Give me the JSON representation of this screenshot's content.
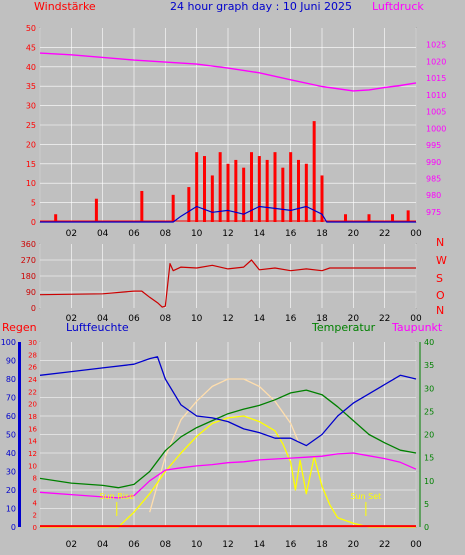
{
  "header": {
    "title": "24 hour graph day : 10 Juni 2025",
    "left_label": "Windstärke",
    "right_label": "Luftdruck"
  },
  "panel2": {
    "direction_labels": [
      "N",
      "W",
      "S",
      "O",
      "N"
    ]
  },
  "panel3": {
    "label_regen": "Regen",
    "label_luftfeuchte": "Luftfeuchte",
    "label_temperatur": "Temperatur",
    "label_taupunkt": "Taupunkt",
    "sunrise_label": "Sun Rise",
    "sunset_label": "Sun Set"
  },
  "colors": {
    "background": "#c0c0c0",
    "grid": "#ffffff",
    "wind": "#ff0000",
    "gust_blue": "#0000cc",
    "wind_green": "#008000",
    "pressure": "#ff00ff",
    "direction": "#cc0000",
    "humidity": "#0000cc",
    "temperature": "#008000",
    "dewpoint": "#ff00ff",
    "solar": "#ffff00",
    "uv": "#ffdead",
    "rain": "#ff0000"
  },
  "chart_data": [
    {
      "type": "line",
      "name": "wind-pressure",
      "x_range_hours": [
        0,
        24
      ],
      "x_ticks": [
        "02",
        "04",
        "06",
        "08",
        "10",
        "12",
        "14",
        "16",
        "18",
        "20",
        "22",
        "00"
      ],
      "y_left": {
        "label": "Windstärke",
        "range": [
          0,
          50
        ],
        "ticks": [
          "0",
          "5",
          "10",
          "15",
          "20",
          "25",
          "30",
          "35",
          "40",
          "45",
          "50"
        ]
      },
      "y_right": {
        "label": "Luftdruck",
        "range": [
          972,
          1030
        ],
        "ticks": [
          "975",
          "980",
          "985",
          "990",
          "995",
          "1000",
          "1005",
          "1010",
          "1015",
          "1020",
          "1025"
        ]
      },
      "series": [
        {
          "name": "Luftdruck",
          "axis": "right",
          "x": [
            0,
            2,
            4,
            6,
            8,
            10,
            12,
            14,
            16,
            18,
            20,
            21,
            22,
            23,
            24
          ],
          "y": [
            1022.5,
            1022.0,
            1021.2,
            1020.4,
            1019.8,
            1019.2,
            1018.0,
            1016.6,
            1014.5,
            1012.5,
            1011.2,
            1011.5,
            1012.2,
            1012.8,
            1013.6
          ]
        },
        {
          "name": "Windstärke",
          "axis": "left",
          "style": "bars",
          "x": [
            1.0,
            3.6,
            6.5,
            8.5,
            9.5,
            10.0,
            10.5,
            11.0,
            11.5,
            12.0,
            12.5,
            13.0,
            13.5,
            14.0,
            14.5,
            15.0,
            15.5,
            16.0,
            16.5,
            17.0,
            17.5,
            18.0,
            19.5,
            21.0,
            22.5,
            23.5
          ],
          "y": [
            2,
            6,
            8,
            7,
            9,
            18,
            17,
            12,
            18,
            15,
            16,
            14,
            18,
            17,
            16,
            18,
            14,
            18,
            16,
            15,
            26,
            12,
            2,
            2,
            2,
            3
          ]
        },
        {
          "name": "Böen",
          "axis": "left",
          "style": "line",
          "x": [
            0,
            8.5,
            9.0,
            10.0,
            11.0,
            12.0,
            13.0,
            14.0,
            15.0,
            16.0,
            17.0,
            18.0,
            18.3,
            24
          ],
          "y": [
            0,
            0,
            1.5,
            4,
            2.5,
            3,
            2,
            4,
            3.5,
            3,
            4,
            2,
            0,
            0
          ]
        }
      ]
    },
    {
      "type": "line",
      "name": "wind-direction",
      "x_range_hours": [
        0,
        24
      ],
      "x_ticks": [
        "02",
        "04",
        "06",
        "08",
        "10",
        "12",
        "14",
        "16",
        "18",
        "20",
        "22",
        "00"
      ],
      "y_left": {
        "range": [
          0,
          360
        ],
        "ticks": [
          "0",
          "90",
          "180",
          "270",
          "360"
        ]
      },
      "y_right_labels": [
        "N",
        "W",
        "S",
        "O",
        "N"
      ],
      "series": [
        {
          "name": "Windrichtung",
          "x": [
            0,
            4,
            6,
            6.5,
            7.0,
            7.5,
            7.8,
            8.0,
            8.3,
            8.5,
            9.0,
            10.0,
            11.0,
            12.0,
            13.0,
            13.5,
            14.0,
            15.0,
            16.0,
            17.0,
            18.0,
            18.5,
            24
          ],
          "y": [
            75,
            80,
            95,
            95,
            60,
            30,
            5,
            10,
            250,
            210,
            230,
            225,
            240,
            220,
            230,
            270,
            215,
            225,
            210,
            220,
            210,
            225,
            225
          ]
        }
      ]
    },
    {
      "type": "line",
      "name": "weather",
      "x_range_hours": [
        0,
        24
      ],
      "x_ticks": [
        "02",
        "04",
        "06",
        "08",
        "10",
        "12",
        "14",
        "16",
        "18",
        "20",
        "22",
        "00"
      ],
      "y_axis_regen": {
        "label": "Regen",
        "range": [
          0,
          100
        ],
        "ticks": [
          "0",
          "10",
          "20",
          "30",
          "40",
          "50",
          "60",
          "70",
          "80",
          "90",
          "100"
        ]
      },
      "y_axis_luftfeuchte": {
        "label": "Luftfeuchte",
        "range": [
          0,
          30
        ],
        "ticks": [
          "0",
          "2",
          "4",
          "6",
          "8",
          "10",
          "12",
          "14",
          "16",
          "18",
          "20",
          "22",
          "24",
          "26",
          "28",
          "30"
        ]
      },
      "y_axis_temperatur": {
        "label": "Temperatur",
        "range": [
          0,
          40
        ],
        "ticks": [
          "0",
          "5",
          "10",
          "15",
          "20",
          "25",
          "30",
          "35",
          "40"
        ]
      },
      "annotations": [
        {
          "text": "Sun Rise",
          "x": 4.9
        },
        {
          "text": "Sun Set",
          "x": 20.8
        }
      ],
      "series": [
        {
          "name": "Luftfeuchte",
          "axis": "regen",
          "x": [
            0,
            2,
            4,
            6,
            7,
            7.5,
            8,
            9,
            10,
            11,
            12,
            13,
            14,
            15,
            16,
            16.5,
            17,
            18,
            19,
            20,
            21,
            22,
            23,
            23.5,
            24
          ],
          "y": [
            82,
            84,
            86,
            88,
            91,
            92,
            80,
            66,
            60,
            59,
            57,
            53,
            51,
            48,
            48,
            46,
            44,
            50,
            60,
            67,
            72,
            77,
            82,
            81,
            80
          ]
        },
        {
          "name": "Temperatur",
          "axis": "temperatur",
          "x": [
            0,
            2,
            4,
            5,
            6,
            7,
            8,
            9,
            10,
            11,
            12,
            13,
            14,
            15,
            16,
            17,
            18,
            19,
            20,
            21,
            22,
            23,
            24
          ],
          "y": [
            10.5,
            9.5,
            9.0,
            8.5,
            9.2,
            12.0,
            16.5,
            19.5,
            21.5,
            23.0,
            24.5,
            25.5,
            26.3,
            27.5,
            29.0,
            29.6,
            28.6,
            26.0,
            23.0,
            20.0,
            18.2,
            16.6,
            16.0
          ]
        },
        {
          "name": "Taupunkt",
          "axis": "temperatur",
          "x": [
            0,
            2,
            4,
            5,
            6,
            7,
            8,
            9,
            10,
            11,
            12,
            13,
            14,
            15,
            16,
            17,
            18,
            19,
            20,
            21,
            22,
            23,
            24
          ],
          "y": [
            7.5,
            7.0,
            6.5,
            6.3,
            6.8,
            10.0,
            12.3,
            12.8,
            13.2,
            13.5,
            13.9,
            14.1,
            14.5,
            14.7,
            14.9,
            15.1,
            15.3,
            15.8,
            16.0,
            15.4,
            14.8,
            14.0,
            12.5
          ]
        },
        {
          "name": "Solar",
          "axis": "regen",
          "x": [
            0,
            5.0,
            6.0,
            7.0,
            8.0,
            9.0,
            10.0,
            11.0,
            12.0,
            13.0,
            14.0,
            15.0,
            15.5,
            16.0,
            16.3,
            16.6,
            17.0,
            17.5,
            18.0,
            18.5,
            19.0,
            20.0,
            21.0,
            24
          ],
          "y": [
            0,
            0,
            8,
            18,
            30,
            40,
            49,
            56,
            59,
            60,
            57,
            52,
            45,
            35,
            20,
            36,
            18,
            38,
            22,
            12,
            5,
            2,
            0,
            0
          ]
        },
        {
          "name": "UV",
          "axis": "regen",
          "x": [
            7.0,
            8,
            9,
            10,
            11,
            12,
            13,
            14,
            15,
            16,
            16.5
          ],
          "y": [
            8,
            38,
            58,
            68,
            76,
            80,
            80,
            76,
            68,
            56,
            46
          ]
        },
        {
          "name": "Regen",
          "axis": "regen",
          "x": [
            0,
            24
          ],
          "y": [
            0.5,
            0.5
          ]
        }
      ]
    }
  ]
}
